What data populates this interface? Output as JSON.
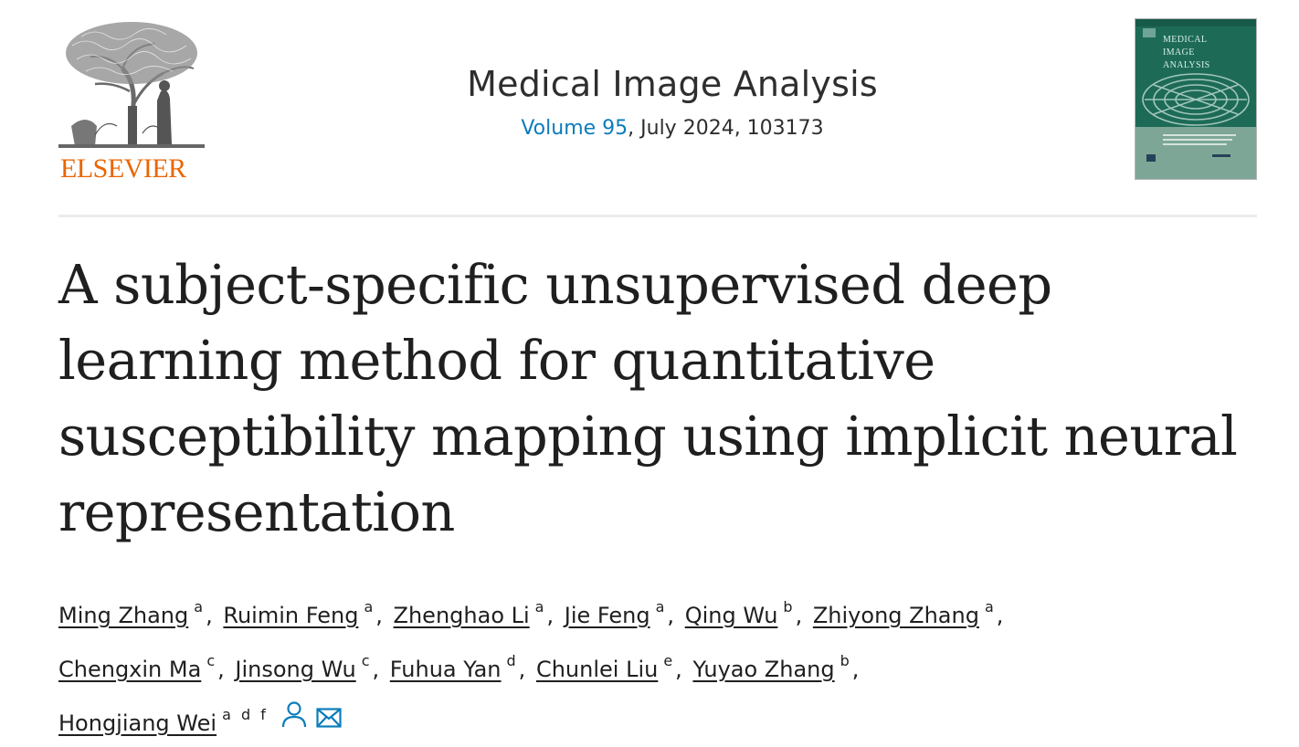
{
  "publisher": {
    "name": "ELSEVIER",
    "brand_color": "#eb6500",
    "logo_icon": "tree-of-knowledge-icon"
  },
  "journal": {
    "title": "Medical Image Analysis",
    "volume_link": "Volume 95",
    "issue_rest": ", July 2024, 103173",
    "link_color": "#0c7dbb",
    "cover": {
      "title_lines": [
        "MEDICAL",
        "IMAGE",
        "ANALYSIS"
      ],
      "background_color": "#1d6b57",
      "icon": "journal-cover-thumbnail-icon"
    }
  },
  "article": {
    "title": "A subject-specific unsupervised deep learning method for quantitative susceptibility mapping using implicit neural representation"
  },
  "authors": [
    {
      "name": "Ming Zhang",
      "aff": "a",
      "sep": ","
    },
    {
      "name": "Ruimin Feng",
      "aff": "a",
      "sep": ","
    },
    {
      "name": "Zhenghao Li",
      "aff": "a",
      "sep": ","
    },
    {
      "name": "Jie Feng",
      "aff": "a",
      "sep": ","
    },
    {
      "name": "Qing Wu",
      "aff": "b",
      "sep": ","
    },
    {
      "name": "Zhiyong Zhang",
      "aff": "a",
      "sep": ","
    },
    {
      "name": "Chengxin Ma",
      "aff": "c",
      "sep": ","
    },
    {
      "name": "Jinsong Wu",
      "aff": "c",
      "sep": ","
    },
    {
      "name": "Fuhua Yan",
      "aff": "d",
      "sep": ","
    },
    {
      "name": "Chunlei Liu",
      "aff": "e",
      "sep": ","
    },
    {
      "name": "Yuyao Zhang",
      "aff": "b",
      "sep": ","
    },
    {
      "name": "Hongjiang Wei",
      "aff": "a d f",
      "sep": ""
    }
  ],
  "icons": {
    "person": "person-icon",
    "email": "email-icon",
    "icon_color": "#0c7dbb"
  }
}
